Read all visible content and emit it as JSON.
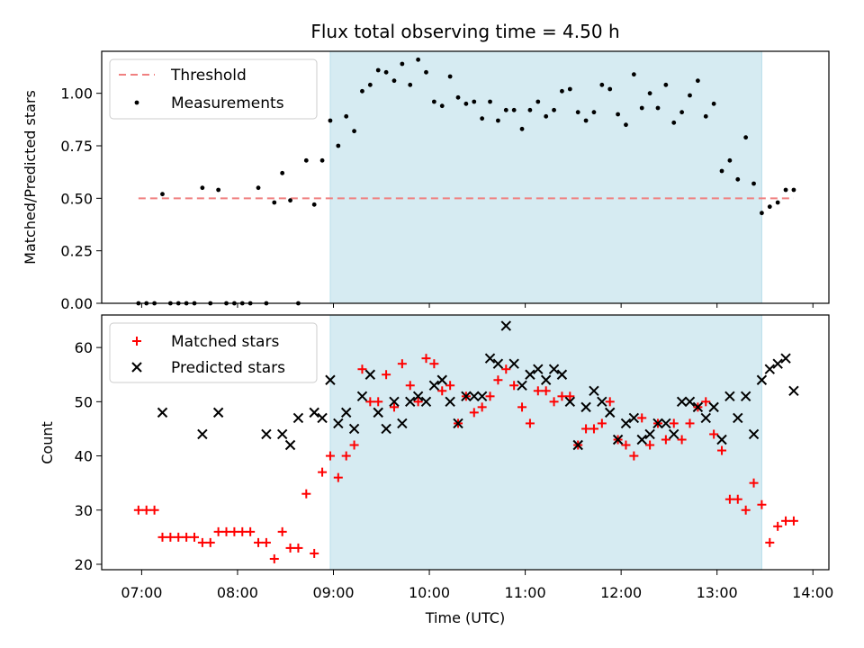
{
  "chart_data": [
    {
      "type": "scatter",
      "title": "Flux total observing time = 4.50 h",
      "xlabel": "",
      "ylabel": "Matched/Predicted stars",
      "xlim": [
        "06:35",
        "14:10"
      ],
      "ylim": [
        0,
        1.2
      ],
      "yticks": [
        0.0,
        0.25,
        0.5,
        0.75,
        1.0
      ],
      "yticklabels": [
        "0.00",
        "0.25",
        "0.50",
        "0.75",
        "1.00"
      ],
      "legend_placement": "upper-left",
      "shaded_interval": [
        "08:58",
        "13:28"
      ],
      "shade_color": "#add8e6",
      "threshold": {
        "name": "Threshold",
        "value": 0.5,
        "x_range": [
          "06:58",
          "13:48"
        ],
        "color": "#f08080"
      },
      "series": [
        {
          "name": "Measurements",
          "color": "#000000",
          "x": [
            "06:58",
            "07:03",
            "07:08",
            "07:13",
            "07:18",
            "07:23",
            "07:28",
            "07:33",
            "07:38",
            "07:43",
            "07:48",
            "07:53",
            "07:58",
            "08:03",
            "08:08",
            "08:13",
            "08:18",
            "08:23",
            "08:28",
            "08:33",
            "08:38",
            "08:43",
            "08:48",
            "08:53",
            "08:58",
            "09:03",
            "09:08",
            "09:13",
            "09:18",
            "09:23",
            "09:28",
            "09:33",
            "09:38",
            "09:43",
            "09:48",
            "09:53",
            "09:58",
            "10:03",
            "10:08",
            "10:13",
            "10:18",
            "10:23",
            "10:28",
            "10:33",
            "10:38",
            "10:43",
            "10:48",
            "10:53",
            "10:58",
            "11:03",
            "11:08",
            "11:13",
            "11:18",
            "11:23",
            "11:28",
            "11:33",
            "11:38",
            "11:43",
            "11:48",
            "11:53",
            "11:58",
            "12:03",
            "12:08",
            "12:13",
            "12:18",
            "12:23",
            "12:28",
            "12:33",
            "12:38",
            "12:43",
            "12:48",
            "12:53",
            "12:58",
            "13:03",
            "13:08",
            "13:13",
            "13:18",
            "13:23",
            "13:28",
            "13:33",
            "13:38",
            "13:43",
            "13:48"
          ],
          "y": [
            0.0,
            0.0,
            0.0,
            0.52,
            0.0,
            0.0,
            0.0,
            0.0,
            0.55,
            0.0,
            0.54,
            0.0,
            0.0,
            0.0,
            0.0,
            0.55,
            0.0,
            0.48,
            0.62,
            0.49,
            0.0,
            0.68,
            0.47,
            0.68,
            0.87,
            0.75,
            0.89,
            0.82,
            1.01,
            1.04,
            1.11,
            1.1,
            1.06,
            1.14,
            1.04,
            1.16,
            1.1,
            0.96,
            0.94,
            1.08,
            0.98,
            0.95,
            0.96,
            0.88,
            0.96,
            0.87,
            0.92,
            0.92,
            0.83,
            0.92,
            0.96,
            0.89,
            0.92,
            1.01,
            1.02,
            0.91,
            0.87,
            0.91,
            1.04,
            1.02,
            0.9,
            0.85,
            1.09,
            0.93,
            1.0,
            0.93,
            1.04,
            0.86,
            0.91,
            0.99,
            1.06,
            0.89,
            0.95,
            0.63,
            0.68,
            0.59,
            0.79,
            0.57,
            0.43,
            0.46,
            0.48,
            0.54,
            0.54
          ]
        }
      ]
    },
    {
      "type": "scatter",
      "title": "",
      "xlabel": "Time (UTC)",
      "ylabel": "Count",
      "xlim": [
        "06:35",
        "14:10"
      ],
      "ylim": [
        19,
        66
      ],
      "xticks": [
        "07:00",
        "08:00",
        "09:00",
        "10:00",
        "11:00",
        "12:00",
        "13:00",
        "14:00"
      ],
      "yticks": [
        20,
        30,
        40,
        50,
        60
      ],
      "legend_placement": "upper-left",
      "shaded_interval": [
        "08:58",
        "13:28"
      ],
      "series": [
        {
          "name": "Matched stars",
          "marker": "plus",
          "color": "#ff0000",
          "x": [
            "06:58",
            "07:03",
            "07:08",
            "07:13",
            "07:18",
            "07:23",
            "07:28",
            "07:33",
            "07:38",
            "07:43",
            "07:48",
            "07:53",
            "07:58",
            "08:03",
            "08:08",
            "08:13",
            "08:18",
            "08:23",
            "08:28",
            "08:33",
            "08:38",
            "08:43",
            "08:48",
            "08:53",
            "08:58",
            "09:03",
            "09:08",
            "09:13",
            "09:18",
            "09:23",
            "09:28",
            "09:33",
            "09:38",
            "09:43",
            "09:48",
            "09:53",
            "09:58",
            "10:03",
            "10:08",
            "10:13",
            "10:18",
            "10:23",
            "10:28",
            "10:33",
            "10:38",
            "10:43",
            "10:48",
            "10:53",
            "10:58",
            "11:03",
            "11:08",
            "11:13",
            "11:18",
            "11:23",
            "11:28",
            "11:33",
            "11:38",
            "11:43",
            "11:48",
            "11:53",
            "11:58",
            "12:03",
            "12:08",
            "12:13",
            "12:18",
            "12:23",
            "12:28",
            "12:33",
            "12:38",
            "12:43",
            "12:48",
            "12:53",
            "12:58",
            "13:03",
            "13:08",
            "13:13",
            "13:18",
            "13:23",
            "13:28",
            "13:33",
            "13:38",
            "13:43",
            "13:48"
          ],
          "y": [
            30,
            30,
            30,
            25,
            25,
            25,
            25,
            25,
            24,
            24,
            26,
            26,
            26,
            26,
            26,
            24,
            24,
            21,
            26,
            23,
            23,
            33,
            22,
            37,
            40,
            36,
            40,
            42,
            56,
            50,
            50,
            55,
            49,
            57,
            53,
            50,
            58,
            57,
            52,
            53,
            46,
            51,
            48,
            49,
            51,
            54,
            56,
            53,
            49,
            46,
            52,
            52,
            50,
            51,
            51,
            42,
            45,
            45,
            46,
            50,
            43,
            42,
            40,
            47,
            42,
            46,
            43,
            46,
            43,
            46,
            49,
            50,
            44,
            41,
            32,
            32,
            30,
            35,
            31,
            24,
            27,
            28,
            28
          ]
        },
        {
          "name": "Predicted stars",
          "marker": "x",
          "color": "#000000",
          "x": [
            "07:13",
            "07:38",
            "07:48",
            "08:18",
            "08:28",
            "08:33",
            "08:38",
            "08:48",
            "08:53",
            "08:58",
            "09:03",
            "09:08",
            "09:13",
            "09:18",
            "09:23",
            "09:28",
            "09:33",
            "09:38",
            "09:43",
            "09:48",
            "09:53",
            "09:58",
            "10:03",
            "10:08",
            "10:13",
            "10:18",
            "10:23",
            "10:28",
            "10:33",
            "10:38",
            "10:43",
            "10:48",
            "10:53",
            "10:58",
            "11:03",
            "11:08",
            "11:13",
            "11:18",
            "11:23",
            "11:28",
            "11:33",
            "11:38",
            "11:43",
            "11:48",
            "11:53",
            "11:58",
            "12:03",
            "12:08",
            "12:13",
            "12:18",
            "12:23",
            "12:28",
            "12:33",
            "12:38",
            "12:43",
            "12:48",
            "12:53",
            "12:58",
            "13:03",
            "13:08",
            "13:13",
            "13:18",
            "13:23",
            "13:28",
            "13:33",
            "13:38",
            "13:43",
            "13:48"
          ],
          "y": [
            48,
            44,
            48,
            44,
            44,
            42,
            47,
            48,
            47,
            54,
            46,
            48,
            45,
            51,
            55,
            48,
            45,
            50,
            46,
            50,
            51,
            50,
            53,
            54,
            50,
            46,
            51,
            51,
            51,
            58,
            57,
            64,
            57,
            53,
            55,
            56,
            54,
            56,
            55,
            50,
            42,
            49,
            52,
            50,
            48,
            43,
            46,
            47,
            43,
            44,
            46,
            46,
            44,
            50,
            50,
            49,
            47,
            49,
            43,
            51,
            47,
            51,
            44,
            54,
            56,
            57,
            58,
            52
          ]
        }
      ]
    }
  ]
}
